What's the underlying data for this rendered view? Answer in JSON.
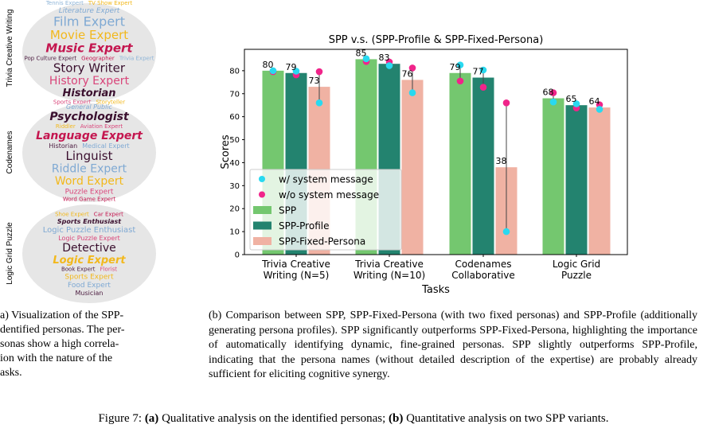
{
  "left_panel": {
    "row_labels": [
      "Trivia Creative Writing",
      "Codenames",
      "Logic Grid Puzzle"
    ],
    "clouds": [
      {
        "words": [
          {
            "text": "Tennis Expert",
            "color": "#8fb5d8"
          },
          {
            "text": "TV Show Expert",
            "color": "#f2b81c"
          },
          {
            "text": "Literature Expert",
            "color": "#7fa9d3"
          },
          {
            "text": "Film Expert",
            "color": "#7fa9d3"
          },
          {
            "text": "Movie Expert",
            "color": "#f2b81c"
          },
          {
            "text": "Music Expert",
            "color": "#c4164f"
          },
          {
            "text": "Pop Culture Expert",
            "color": "#4a1a3e"
          },
          {
            "text": "Story Writer",
            "color": "#3a0f2e"
          },
          {
            "text": "History Expert",
            "color": "#d9457a"
          },
          {
            "text": "Historian",
            "color": "#3a0f2e"
          },
          {
            "text": "Sports Expert",
            "color": "#d9457a"
          },
          {
            "text": "Geographer",
            "color": "#c4164f"
          },
          {
            "text": "Trivia Expert",
            "color": "#8fb5d8"
          },
          {
            "text": "Storyteller",
            "color": "#f2b81c"
          }
        ]
      },
      {
        "words": [
          {
            "text": "General Public",
            "color": "#7fa9d3"
          },
          {
            "text": "Psychologist",
            "color": "#3a0f2e"
          },
          {
            "text": "Riddler",
            "color": "#f2b81c"
          },
          {
            "text": "Language Expert",
            "color": "#c4164f"
          },
          {
            "text": "Aviation Expert",
            "color": "#d9457a"
          },
          {
            "text": "Historian",
            "color": "#4a1a3e"
          },
          {
            "text": "Linguist",
            "color": "#3a0f2e"
          },
          {
            "text": "Medical Expert",
            "color": "#7fa9d3"
          },
          {
            "text": "Riddle Expert",
            "color": "#7fa9d3"
          },
          {
            "text": "Word Expert",
            "color": "#f2b81c"
          },
          {
            "text": "Puzzle Expert",
            "color": "#d9457a"
          },
          {
            "text": "Word Game Expert",
            "color": "#c4164f"
          }
        ]
      },
      {
        "words": [
          {
            "text": "Shoe Expert",
            "color": "#f2b81c"
          },
          {
            "text": "Car Expert",
            "color": "#c4164f"
          },
          {
            "text": "Sports Enthusiast",
            "color": "#3a0f2e"
          },
          {
            "text": "Logic Puzzle Enthusiast",
            "color": "#7fa9d3"
          },
          {
            "text": "Logic Puzzle Expert",
            "color": "#d9457a"
          },
          {
            "text": "Detective",
            "color": "#3a0f2e"
          },
          {
            "text": "Logic Expert",
            "color": "#f2b81c"
          },
          {
            "text": "Book Expert",
            "color": "#4a1a3e"
          },
          {
            "text": "Florist",
            "color": "#d9457a"
          },
          {
            "text": "Sports Expert",
            "color": "#f2b81c"
          },
          {
            "text": "Food Expert",
            "color": "#7fa9d3"
          },
          {
            "text": "Musician",
            "color": "#4a1a3e"
          }
        ]
      }
    ]
  },
  "chart_data": {
    "type": "bar",
    "title": "SPP v.s. (SPP-Profile & SPP-Fixed-Persona)",
    "xlabel": "Tasks",
    "ylabel": "Scores",
    "ylim": [
      0,
      89.3
    ],
    "yticks": [
      0,
      10,
      20,
      30,
      40,
      50,
      60,
      70,
      80
    ],
    "categories": [
      "Trivia Creative\nWriting (N=5)",
      "Trivia Creative\nWriting (N=10)",
      "Codenames\nCollaborative",
      "Logic Grid\nPuzzle"
    ],
    "series": [
      {
        "name": "SPP",
        "color": "#74c76f",
        "values": [
          80,
          85,
          79,
          68
        ],
        "w_system": [
          80,
          85.2,
          82.5,
          66.4
        ],
        "wo_system": [
          79.6,
          84,
          75.5,
          70.4
        ]
      },
      {
        "name": "SPP-Profile",
        "color": "#23836f",
        "values": [
          79,
          83,
          77,
          65
        ],
        "w_system": [
          79.8,
          82.2,
          80.3,
          65.6
        ],
        "wo_system": [
          78.2,
          83.8,
          72.8,
          63.8
        ]
      },
      {
        "name": "SPP-Fixed-Persona",
        "color": "#f0b2a3",
        "values": [
          73,
          76,
          38,
          64
        ],
        "w_system": [
          66,
          70.4,
          10,
          63.2
        ],
        "wo_system": [
          79.6,
          81.2,
          66,
          65.2
        ]
      }
    ],
    "markers": [
      {
        "name": "w/ system message",
        "color": "#29d9f0"
      },
      {
        "name": "w/o system message",
        "color": "#f0248a"
      }
    ],
    "legend_position": "lower-left",
    "grid": false
  },
  "captions": {
    "a_lines": [
      "a) Visualization of the SPP-",
      "dentified personas. The per-",
      "sonas show a high correla-",
      "ion with the nature of the",
      "asks."
    ],
    "b": "(b) Comparison between SPP, SPP-Fixed-Persona (with two fixed personas) and SPP-Profile (additionally generating persona profiles). SPP significantly outperforms SPP-Fixed-Persona, highlighting the importance of automatically identifying dynamic, fine-grained personas. SPP slightly outperforms SPP-Profile, indicating that the persona names (without detailed description of the expertise) are probably already sufficient for eliciting cognitive synergy.",
    "figure_label": "Figure 7: ",
    "a_bold": "(a)",
    "a_text": " Qualitative analysis on the identified personas; ",
    "b_bold": "(b)",
    "b_text": " Quantitative analysis on two SPP variants."
  }
}
